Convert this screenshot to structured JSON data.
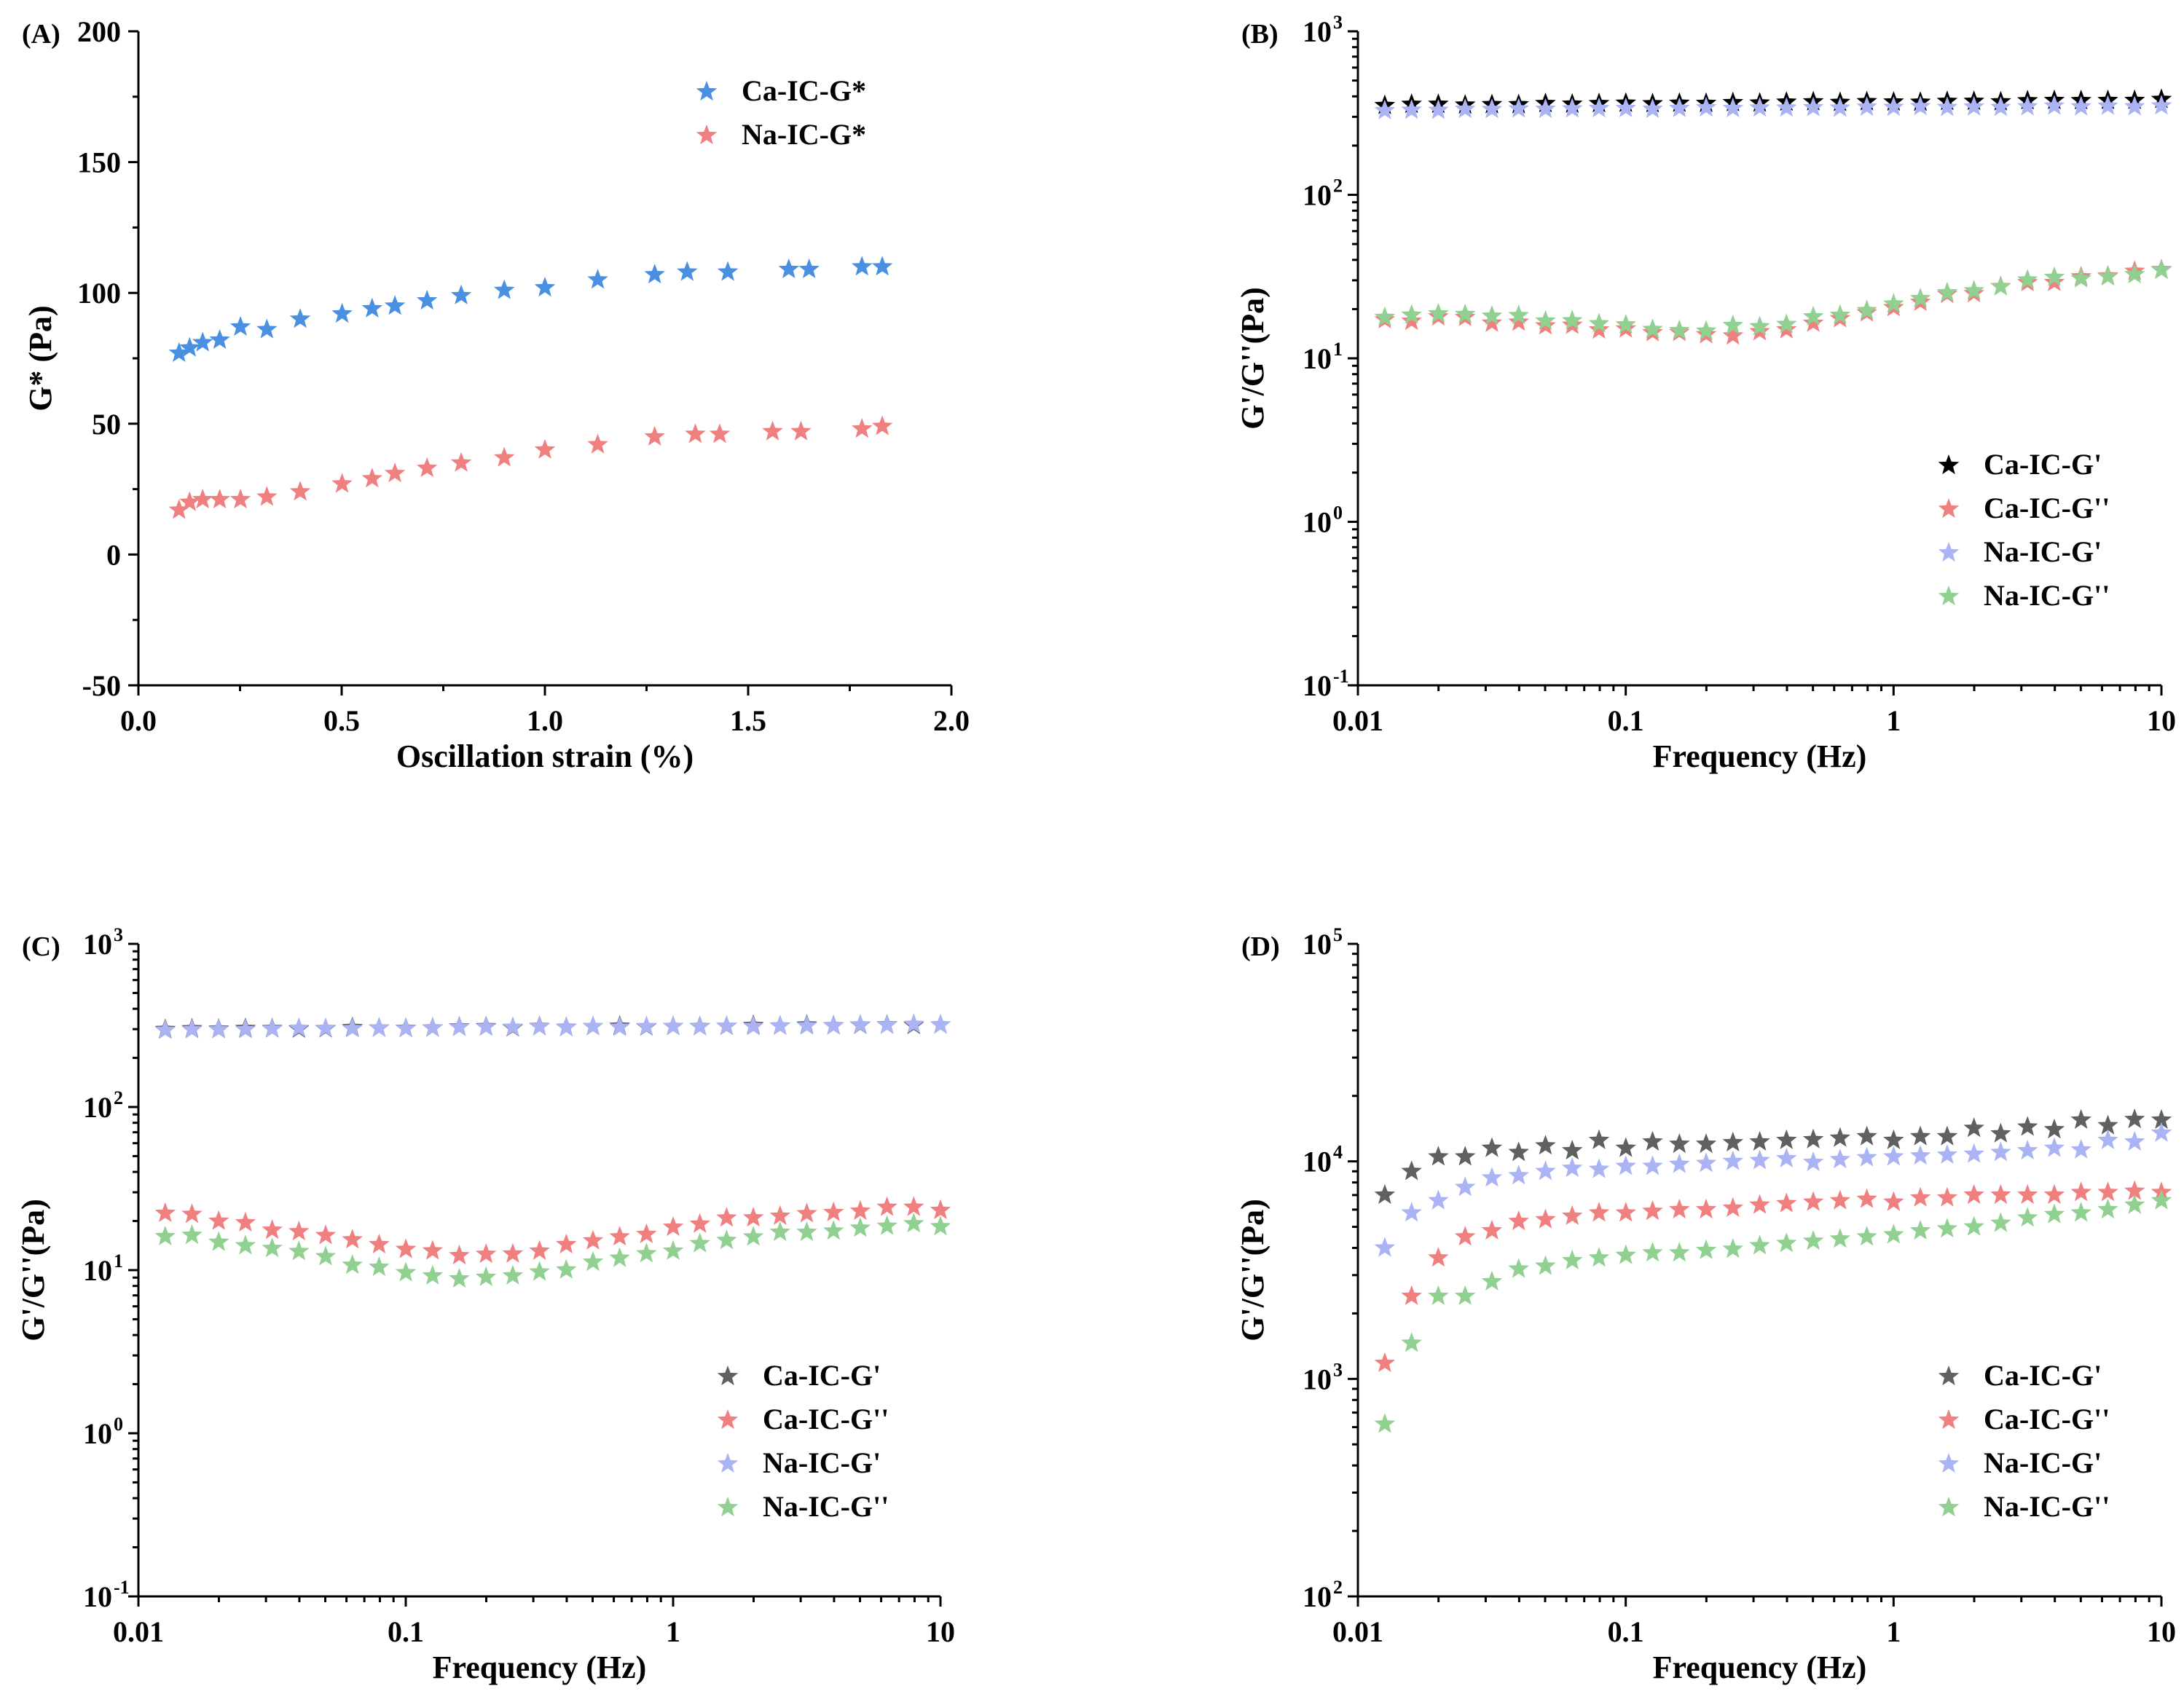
{
  "chart_data": [
    {
      "panel": "(A)",
      "type": "scatter",
      "xscale": "linear",
      "yscale": "linear",
      "xlabel": "Oscillation strain (%)",
      "ylabel": "G* (Pa)",
      "xlim": [
        0,
        2
      ],
      "ylim": [
        -50,
        200
      ],
      "xticks": [
        "0.0",
        "0.5",
        "1.0",
        "1.5",
        "2.0"
      ],
      "yticks": [
        "-50",
        "0",
        "50",
        "100",
        "150",
        "200"
      ],
      "legend_position": "top-right",
      "series": [
        {
          "name": "Ca-IC-G*",
          "color": "#4a90e2",
          "x": [
            0.1,
            0.126,
            0.158,
            0.2,
            0.251,
            0.316,
            0.398,
            0.501,
            0.575,
            0.631,
            0.71,
            0.794,
            0.9,
            1.0,
            1.13,
            1.27,
            1.35,
            1.45,
            1.6,
            1.65,
            1.78,
            1.83
          ],
          "y": [
            77,
            79,
            81,
            82,
            87,
            86,
            90,
            92,
            94,
            95,
            97,
            99,
            101,
            102,
            105,
            107,
            108,
            108,
            109,
            109,
            110,
            110
          ]
        },
        {
          "name": "Na-IC-G*",
          "color": "#f08080",
          "x": [
            0.1,
            0.126,
            0.158,
            0.2,
            0.251,
            0.316,
            0.398,
            0.501,
            0.575,
            0.631,
            0.71,
            0.794,
            0.9,
            1.0,
            1.13,
            1.27,
            1.37,
            1.43,
            1.56,
            1.63,
            1.78,
            1.83
          ],
          "y": [
            17,
            20,
            21,
            21,
            21,
            22,
            24,
            27,
            29,
            31,
            33,
            35,
            37,
            40,
            42,
            45,
            46,
            46,
            47,
            47,
            48,
            49
          ]
        }
      ]
    },
    {
      "panel": "(B)",
      "type": "scatter",
      "xscale": "log",
      "yscale": "log",
      "xlabel": "Frequency (Hz)",
      "ylabel": "G'/G''(Pa)",
      "xlim": [
        0.01,
        10
      ],
      "ylim": [
        0.1,
        1000
      ],
      "xticks": [
        "0.01",
        "0.1",
        "1",
        "10"
      ],
      "yticks_exp": [
        "-1",
        "0",
        "1",
        "2",
        "3"
      ],
      "legend_position": "bottom-right",
      "series": [
        {
          "name": "Ca-IC-G'",
          "color": "#000000",
          "y_start": 355,
          "y_end": 380,
          "noise": 0.01
        },
        {
          "name": "Ca-IC-G''",
          "color": "#f08080",
          "y_start": 18,
          "y_end": 35,
          "dip": 14,
          "noise": 0.04
        },
        {
          "name": "Na-IC-G'",
          "color": "#aab4f5",
          "y_start": 330,
          "y_end": 350,
          "noise": 0.01
        },
        {
          "name": "Na-IC-G''",
          "color": "#90d090",
          "y_start": 19,
          "y_end": 35,
          "dip": 15,
          "noise": 0.05
        }
      ]
    },
    {
      "panel": "(C)",
      "type": "scatter",
      "xscale": "log",
      "yscale": "log",
      "xlabel": "Frequency (Hz)",
      "ylabel": "G'/G''(Pa)",
      "xlim": [
        0.01,
        10
      ],
      "ylim": [
        0.1,
        1000
      ],
      "xticks": [
        "0.01",
        "0.1",
        "1",
        "10"
      ],
      "yticks_exp": [
        "-1",
        "0",
        "1",
        "2",
        "3"
      ],
      "legend_position": "bottom-right",
      "series": [
        {
          "name": "Ca-IC-G'",
          "color": "#606060",
          "y_start": 300,
          "y_end": 320,
          "noise": 0.01
        },
        {
          "name": "Ca-IC-G''",
          "color": "#f08080",
          "y_start": 24,
          "y_end": 24,
          "dip": 12.5,
          "noise": 0.04
        },
        {
          "name": "Na-IC-G'",
          "color": "#aab4f5",
          "y_start": 298,
          "y_end": 320,
          "noise": 0.01
        },
        {
          "name": "Na-IC-G''",
          "color": "#90d090",
          "y_start": 18,
          "y_end": 19,
          "dip": 9,
          "noise": 0.04
        }
      ]
    },
    {
      "panel": "(D)",
      "type": "scatter",
      "xscale": "log",
      "yscale": "log",
      "xlabel": "Frequency (Hz)",
      "ylabel": "G'/G''(Pa)",
      "xlim": [
        0.01,
        10
      ],
      "ylim": [
        100,
        100000
      ],
      "xticks": [
        "0.01",
        "0.1",
        "1",
        "10"
      ],
      "yticks_exp": [
        "2",
        "3",
        "4",
        "5"
      ],
      "legend_position": "bottom-right",
      "series": [
        {
          "name": "Ca-IC-G'",
          "color": "#606060",
          "y": [
            7000,
            9000,
            10500,
            10500,
            11500,
            11000,
            11800,
            11200,
            12500,
            11500,
            12300,
            12000,
            12000,
            12200,
            12300,
            12500,
            12600,
            12800,
            13000,
            12500,
            13000,
            13000,
            14200,
            13400,
            14400,
            14000,
            15500,
            14600,
            15600,
            15500
          ]
        },
        {
          "name": "Ca-IC-G''",
          "color": "#f08080",
          "y": [
            1180,
            2400,
            3600,
            4500,
            4800,
            5300,
            5400,
            5600,
            5800,
            5800,
            5900,
            6000,
            6000,
            6100,
            6300,
            6400,
            6500,
            6600,
            6700,
            6500,
            6800,
            6800,
            7000,
            7000,
            7000,
            7000,
            7200,
            7200,
            7300,
            7200
          ]
        },
        {
          "name": "Na-IC-G'",
          "color": "#aab4f5",
          "y": [
            4000,
            5800,
            6600,
            7600,
            8400,
            8600,
            9000,
            9300,
            9200,
            9500,
            9500,
            9700,
            9800,
            10000,
            10100,
            10300,
            9900,
            10200,
            10400,
            10500,
            10600,
            10700,
            10800,
            11000,
            11200,
            11500,
            11300,
            12500,
            12300,
            13500
          ]
        },
        {
          "name": "Na-IC-G''",
          "color": "#90d090",
          "y": [
            620,
            1460,
            2400,
            2400,
            2800,
            3200,
            3300,
            3500,
            3600,
            3700,
            3800,
            3800,
            3900,
            3950,
            4100,
            4200,
            4300,
            4400,
            4500,
            4600,
            4800,
            4900,
            5000,
            5200,
            5500,
            5700,
            5800,
            6000,
            6300,
            6600
          ]
        }
      ]
    }
  ]
}
